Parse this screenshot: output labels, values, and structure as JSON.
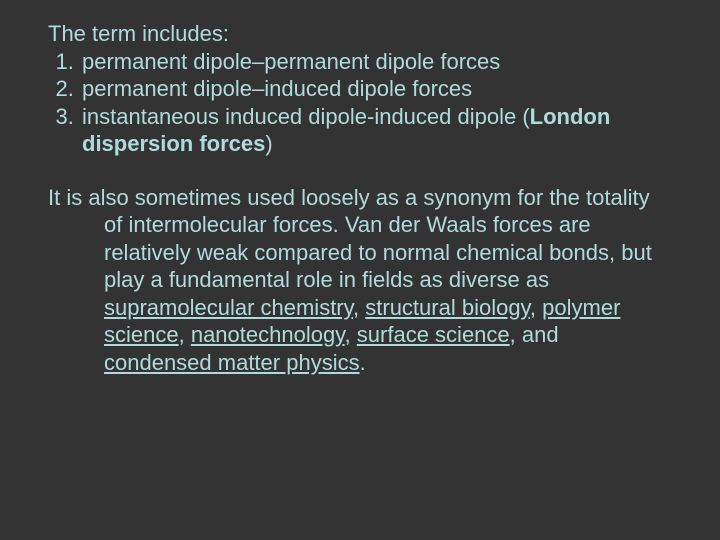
{
  "slide": {
    "background_color": "#333333",
    "text_color": "#b0dbdb",
    "font_family": "Verdana, Geneva, sans-serif",
    "font_size_pt": 17,
    "intro": "The term includes:",
    "list": {
      "items": [
        {
          "text": "permanent dipole–permanent dipole forces"
        },
        {
          "text": "permanent dipole–induced dipole forces"
        },
        {
          "runs": [
            {
              "text": "instantaneous induced dipole-induced dipole ("
            },
            {
              "text": "London dispersion forces",
              "bold": true
            },
            {
              "text": ")"
            }
          ]
        }
      ]
    },
    "paragraph": {
      "runs": [
        {
          "text": "It is also sometimes used loosely as a synonym for the totality of intermolecular forces. Van der Waals forces are relatively weak compared to normal chemical bonds, but play a fundamental role in fields as diverse as "
        },
        {
          "text": "supramolecular chemistry",
          "underline": true
        },
        {
          "text": ", "
        },
        {
          "text": "structural biology",
          "underline": true
        },
        {
          "text": ", "
        },
        {
          "text": "polymer science",
          "underline": true
        },
        {
          "text": ", "
        },
        {
          "text": "nanotechnology",
          "underline": true
        },
        {
          "text": ", "
        },
        {
          "text": "surface science",
          "underline": true
        },
        {
          "text": ", and "
        },
        {
          "text": "condensed matter physics",
          "underline": true
        },
        {
          "text": "."
        }
      ]
    }
  }
}
